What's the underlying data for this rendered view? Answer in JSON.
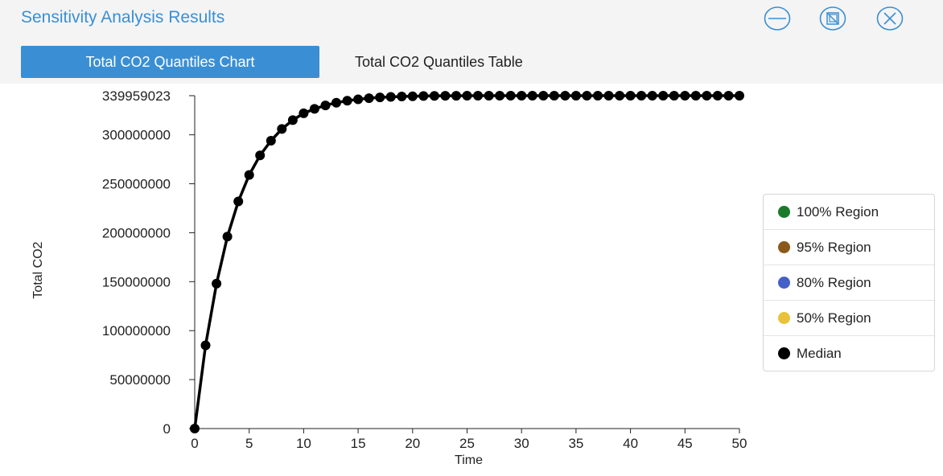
{
  "window": {
    "title": "Sensitivity Analysis Results",
    "accent": "#3a8fd4"
  },
  "tabs": [
    {
      "label": "Total CO2 Quantiles Chart",
      "active": true
    },
    {
      "label": "Total CO2 Quantiles Table",
      "active": false
    }
  ],
  "icons": {
    "minimize": "minimize-icon",
    "restore": "restore-icon",
    "close": "close-icon"
  },
  "legend": {
    "items": [
      {
        "label": "100% Region",
        "color": "#1b7a2a"
      },
      {
        "label": "95% Region",
        "color": "#8a5a1b"
      },
      {
        "label": "80% Region",
        "color": "#4460c8"
      },
      {
        "label": "50% Region",
        "color": "#e8c33a"
      },
      {
        "label": "Median",
        "color": "#000000"
      }
    ]
  },
  "chart_data": {
    "type": "line",
    "xlabel": "Time",
    "ylabel": "Total CO2",
    "xlim": [
      0,
      50
    ],
    "ylim": [
      0,
      339959023
    ],
    "x_ticks": [
      "0",
      "5",
      "10",
      "15",
      "20",
      "25",
      "30",
      "35",
      "40",
      "45",
      "50"
    ],
    "y_ticks": [
      {
        "value": 0,
        "label": "0"
      },
      {
        "value": 50000000,
        "label": "50000000"
      },
      {
        "value": 100000000,
        "label": "100000000"
      },
      {
        "value": 150000000,
        "label": "150000000"
      },
      {
        "value": 200000000,
        "label": "200000000"
      },
      {
        "value": 250000000,
        "label": "250000000"
      },
      {
        "value": 300000000,
        "label": "300000000"
      },
      {
        "value": 339959023,
        "label": "339959023"
      }
    ],
    "grid": false,
    "legend_position": "right",
    "series": [
      {
        "name": "Median",
        "color": "#000000",
        "x": [
          0,
          1,
          2,
          3,
          4,
          5,
          6,
          7,
          8,
          9,
          10,
          11,
          12,
          13,
          14,
          15,
          16,
          17,
          18,
          19,
          20,
          21,
          22,
          23,
          24,
          25,
          26,
          27,
          28,
          29,
          30,
          31,
          32,
          33,
          34,
          35,
          36,
          37,
          38,
          39,
          40,
          41,
          42,
          43,
          44,
          45,
          46,
          47,
          48,
          49,
          50
        ],
        "y": [
          0,
          85000000,
          148000000,
          196000000,
          232000000,
          259000000,
          279000000,
          294000000,
          306000000,
          315000000,
          322000000,
          326500000,
          330000000,
          332800000,
          334800000,
          336300000,
          337400000,
          338200000,
          338700000,
          339100000,
          339400000,
          339600000,
          339750000,
          339850000,
          339900000,
          339930000,
          339950000,
          339959023,
          339959023,
          339959023,
          339959023,
          339959023,
          339959023,
          339959023,
          339959023,
          339959023,
          339959023,
          339959023,
          339959023,
          339959023,
          339959023,
          339959023,
          339959023,
          339959023,
          339959023,
          339959023,
          339959023,
          339959023,
          339959023,
          339959023,
          339959023
        ]
      }
    ]
  }
}
